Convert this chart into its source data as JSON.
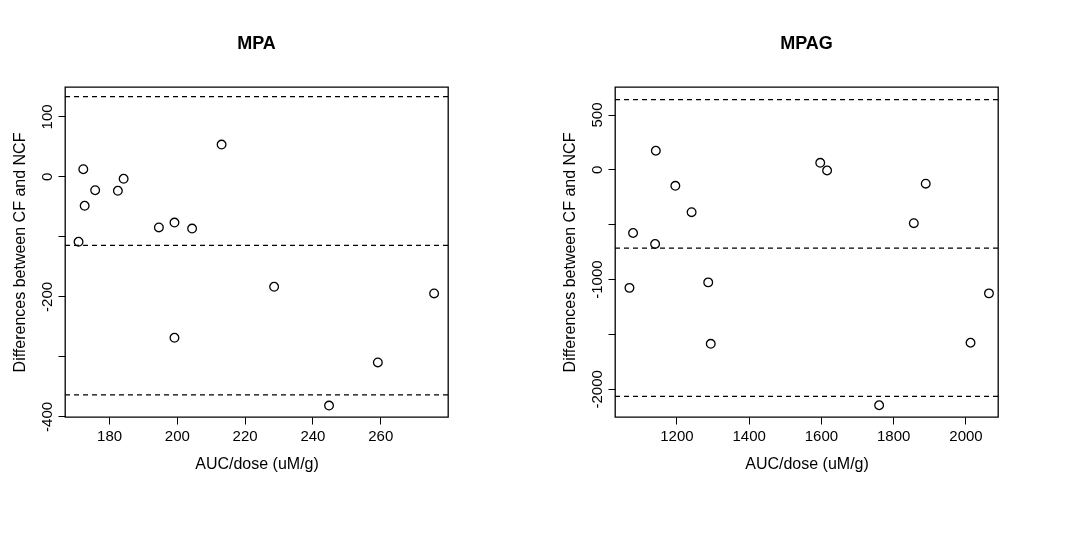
{
  "chart_data": [
    {
      "type": "scatter",
      "title": "MPA",
      "xlabel": "AUC/dose (uM/g)",
      "ylabel": "Differences between CF and NCF",
      "xlim": [
        167,
        280
      ],
      "ylim": [
        -401,
        149
      ],
      "xticks": [
        180,
        200,
        220,
        240,
        260
      ],
      "yticks": [
        -400,
        {
          "value": -300,
          "label": null
        },
        -200,
        {
          "value": -100,
          "label": null
        },
        0,
        100
      ],
      "grid": false,
      "marker": "circle",
      "series": [
        {
          "color": "#000000",
          "x": [
            172.4,
            172.8,
            175.9,
            182.6,
            184.3,
            171.0,
            194.7,
            199.3,
            204.5,
            213.2,
            228.7,
            199.3,
            244.9,
            259.3,
            275.9
          ],
          "values": [
            12,
            -49,
            -23,
            -24,
            -4,
            -109,
            -85,
            -77,
            -87,
            53,
            -184,
            -269,
            -382,
            -310,
            -195
          ]
        }
      ],
      "ref_lines": [
        {
          "axis": "y",
          "value": 133,
          "line_style": "dashed",
          "color": "#000000"
        },
        {
          "axis": "y",
          "value": -115,
          "line_style": "dashed",
          "color": "#000000"
        },
        {
          "axis": "y",
          "value": -364,
          "line_style": "dashed",
          "color": "#000000"
        }
      ]
    },
    {
      "type": "scatter",
      "title": "MPAG",
      "xlabel": "AUC/dose (uM/g)",
      "ylabel": "Differences between CF and NCF",
      "xlim": [
        1030,
        2090
      ],
      "ylim": [
        -2257,
        751
      ],
      "xticks": [
        1200,
        1400,
        1600,
        1800,
        2000
      ],
      "yticks": [
        -2000,
        {
          "value": -1500,
          "label": null
        },
        -1000,
        {
          "value": -500,
          "label": null
        },
        0,
        500
      ],
      "grid": false,
      "marker": "circle",
      "series": [
        {
          "color": "#000000",
          "x": [
            1070,
            1080,
            1143,
            1141,
            1197,
            1242,
            1288,
            1295,
            1598,
            1617,
            1761,
            1857,
            1890,
            2014,
            2065
          ],
          "values": [
            -1080,
            -580,
            170,
            -680,
            -150,
            -390,
            -1030,
            -1590,
            60,
            -10,
            -2150,
            -490,
            -130,
            -1580,
            -1130
          ]
        }
      ],
      "ref_lines": [
        {
          "axis": "y",
          "value": 636,
          "line_style": "dashed",
          "color": "#000000"
        },
        {
          "axis": "y",
          "value": -718,
          "line_style": "dashed",
          "color": "#000000"
        },
        {
          "axis": "y",
          "value": -2069,
          "line_style": "dashed",
          "color": "#000000"
        }
      ]
    }
  ]
}
